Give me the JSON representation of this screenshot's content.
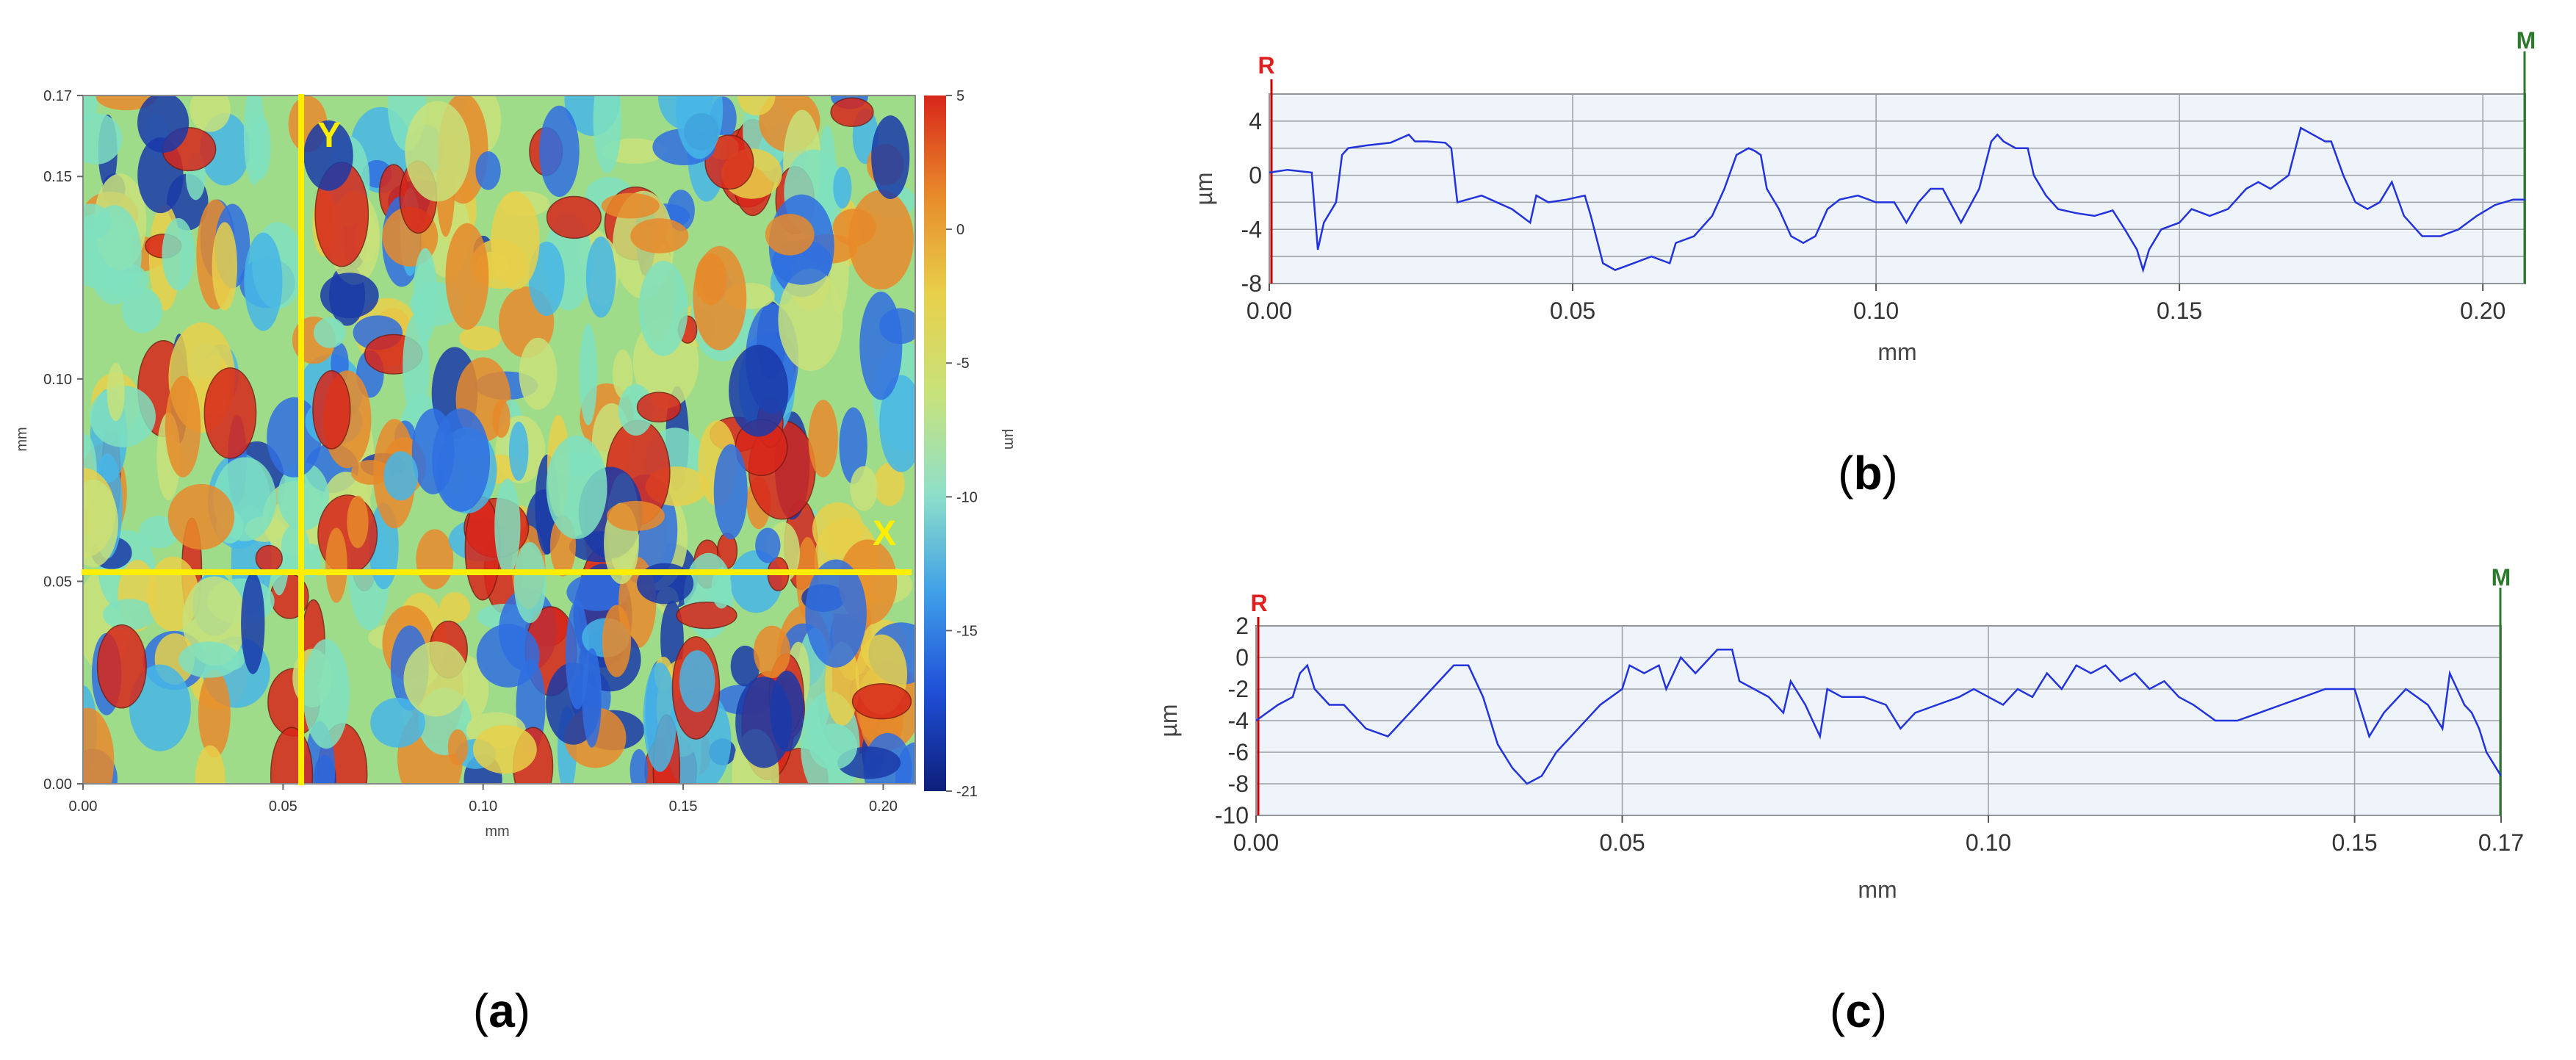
{
  "chart_data": [
    {
      "panel": "(a)",
      "type": "heatmap",
      "xlabel": "mm",
      "ylabel": "mm",
      "colorbar_label": "µm",
      "x_ticks": [
        "0.00",
        "0.05",
        "0.10",
        "0.15",
        "0.20"
      ],
      "y_ticks": [
        "0.00",
        "0.05",
        "0.10",
        "0.15",
        "0.17"
      ],
      "xlim": [
        0,
        0.208
      ],
      "ylim": [
        0,
        0.17
      ],
      "colorbar_ticks": [
        "5",
        "0",
        "-5",
        "-10",
        "-15",
        "-21"
      ],
      "colorbar_range": [
        -21,
        5
      ],
      "colorscale": [
        "#0d1f7a",
        "#1f4fd8",
        "#3fa0e8",
        "#8fe0c8",
        "#c8e27a",
        "#e8d04a",
        "#e88a2a",
        "#d8261a"
      ],
      "crosshair_color": "#ffee00",
      "crosshair_labels": {
        "vertical": "Y",
        "horizontal": "X"
      },
      "crosshair": {
        "vertical_x": 0.055,
        "horizontal_y": 0.053
      }
    },
    {
      "panel": "(b)",
      "type": "line",
      "xlabel": "mm",
      "ylabel": "µm",
      "xlim": [
        0,
        0.207
      ],
      "ylim": [
        -8,
        6
      ],
      "x_ticks": [
        "0.00",
        "0.05",
        "0.10",
        "0.15",
        "0.20"
      ],
      "y_ticks": [
        "4",
        "0",
        "-4",
        "-8"
      ],
      "y_tick_values": [
        4,
        0,
        -4,
        -8
      ],
      "grid": true,
      "marker_left": "R",
      "marker_right": "M",
      "line_color": "#2233dd",
      "series": [
        {
          "x": [
            0.0,
            0.003,
            0.007,
            0.008,
            0.009,
            0.011,
            0.012,
            0.013,
            0.016,
            0.02,
            0.023,
            0.024,
            0.026,
            0.029,
            0.03,
            0.031,
            0.035,
            0.04,
            0.043,
            0.044,
            0.046,
            0.049,
            0.052,
            0.053,
            0.055,
            0.057,
            0.06,
            0.063,
            0.066,
            0.067,
            0.07,
            0.073,
            0.075,
            0.077,
            0.079,
            0.08,
            0.081,
            0.082,
            0.084,
            0.086,
            0.088,
            0.09,
            0.092,
            0.094,
            0.097,
            0.1,
            0.103,
            0.105,
            0.107,
            0.109,
            0.111,
            0.114,
            0.117,
            0.119,
            0.12,
            0.121,
            0.123,
            0.125,
            0.126,
            0.128,
            0.13,
            0.133,
            0.136,
            0.139,
            0.141,
            0.143,
            0.144,
            0.145,
            0.147,
            0.15,
            0.152,
            0.155,
            0.158,
            0.161,
            0.163,
            0.165,
            0.168,
            0.17,
            0.172,
            0.174,
            0.175,
            0.177,
            0.179,
            0.181,
            0.183,
            0.185,
            0.187,
            0.19,
            0.193,
            0.196,
            0.199,
            0.202,
            0.205,
            0.207
          ],
          "y": [
            0.2,
            0.4,
            0.2,
            -5.5,
            -3.5,
            -2.0,
            1.5,
            2.0,
            2.2,
            2.4,
            3.0,
            2.5,
            2.5,
            2.4,
            2.0,
            -2.0,
            -1.5,
            -2.5,
            -3.5,
            -1.5,
            -2.0,
            -1.8,
            -1.5,
            -3.0,
            -6.5,
            -7.0,
            -6.5,
            -6.0,
            -6.5,
            -5.0,
            -4.5,
            -3.0,
            -1.0,
            1.5,
            2.0,
            1.8,
            1.5,
            -1.0,
            -2.5,
            -4.5,
            -5.0,
            -4.5,
            -2.5,
            -1.8,
            -1.5,
            -2.0,
            -2.0,
            -3.5,
            -2.0,
            -1.0,
            -1.0,
            -3.5,
            -1.0,
            2.5,
            3.0,
            2.5,
            2.0,
            2.0,
            0.0,
            -1.5,
            -2.5,
            -2.8,
            -3.0,
            -2.6,
            -4.0,
            -5.5,
            -7.0,
            -5.5,
            -4.0,
            -3.5,
            -2.5,
            -3.0,
            -2.5,
            -1.0,
            -0.5,
            -1.0,
            0.0,
            3.5,
            3.0,
            2.5,
            2.5,
            0.0,
            -2.0,
            -2.5,
            -2.0,
            -0.5,
            -3.0,
            -4.5,
            -4.5,
            -4.0,
            -3.0,
            -2.2,
            -1.8,
            -1.8
          ]
        }
      ]
    },
    {
      "panel": "(c)",
      "type": "line",
      "xlabel": "mm",
      "ylabel": "µm",
      "xlim": [
        0,
        0.17
      ],
      "ylim": [
        -10,
        2
      ],
      "x_ticks": [
        "0.00",
        "0.05",
        "0.10",
        "0.15",
        "0.17"
      ],
      "x_tick_values": [
        0,
        0.05,
        0.1,
        0.15,
        0.17
      ],
      "y_ticks": [
        "2",
        "0",
        "-2",
        "-4",
        "-6",
        "-8",
        "-10"
      ],
      "y_tick_values": [
        2,
        0,
        -2,
        -4,
        -6,
        -8,
        -10
      ],
      "grid": true,
      "marker_left": "R",
      "marker_right": "M",
      "line_color": "#2233dd",
      "series": [
        {
          "x": [
            0.0,
            0.003,
            0.005,
            0.006,
            0.007,
            0.008,
            0.01,
            0.012,
            0.015,
            0.018,
            0.021,
            0.024,
            0.027,
            0.029,
            0.031,
            0.033,
            0.035,
            0.037,
            0.039,
            0.041,
            0.044,
            0.047,
            0.05,
            0.051,
            0.053,
            0.055,
            0.056,
            0.058,
            0.06,
            0.062,
            0.063,
            0.065,
            0.066,
            0.068,
            0.07,
            0.072,
            0.073,
            0.075,
            0.077,
            0.078,
            0.08,
            0.083,
            0.086,
            0.088,
            0.09,
            0.093,
            0.096,
            0.098,
            0.1,
            0.102,
            0.104,
            0.106,
            0.108,
            0.11,
            0.112,
            0.114,
            0.116,
            0.118,
            0.12,
            0.122,
            0.124,
            0.126,
            0.128,
            0.131,
            0.134,
            0.137,
            0.14,
            0.143,
            0.146,
            0.148,
            0.15,
            0.152,
            0.154,
            0.157,
            0.16,
            0.162,
            0.163,
            0.165,
            0.166,
            0.167,
            0.168,
            0.17
          ],
          "y": [
            -4.0,
            -3.0,
            -2.5,
            -1.0,
            -0.5,
            -2.0,
            -3.0,
            -3.0,
            -4.5,
            -5.0,
            -3.5,
            -2.0,
            -0.5,
            -0.5,
            -2.5,
            -5.5,
            -7.0,
            -8.0,
            -7.5,
            -6.0,
            -4.5,
            -3.0,
            -2.0,
            -0.5,
            -1.0,
            -0.5,
            -2.0,
            0.0,
            -1.0,
            0.0,
            0.5,
            0.5,
            -1.5,
            -2.0,
            -2.5,
            -3.5,
            -1.5,
            -3.0,
            -5.0,
            -2.0,
            -2.5,
            -2.5,
            -3.0,
            -4.5,
            -3.5,
            -3.0,
            -2.5,
            -2.0,
            -2.5,
            -3.0,
            -2.0,
            -2.5,
            -1.0,
            -2.0,
            -0.5,
            -1.0,
            -0.5,
            -1.5,
            -1.0,
            -2.0,
            -1.5,
            -2.5,
            -3.0,
            -4.0,
            -4.0,
            -3.5,
            -3.0,
            -2.5,
            -2.0,
            -2.0,
            -2.0,
            -5.0,
            -3.5,
            -2.0,
            -3.0,
            -4.5,
            -1.0,
            -3.0,
            -3.5,
            -4.5,
            -6.0,
            -7.5
          ]
        }
      ]
    }
  ]
}
